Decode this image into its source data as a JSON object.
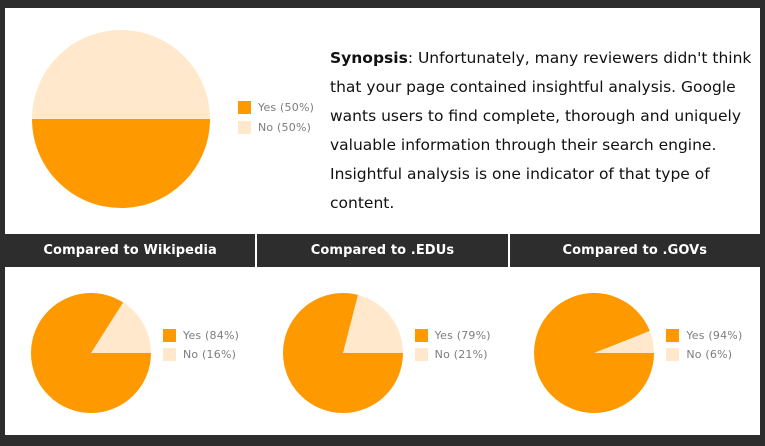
{
  "colors": {
    "yes": "#FF9900",
    "no": "#FFE8CB",
    "frame": "#2D2D2D",
    "header_bg": "#2D2D2D",
    "header_divider": "#FFFFFF",
    "legend_text": "#7D7D7D",
    "synopsis_text": "#111111"
  },
  "synopsis": {
    "label": "Synopsis",
    "text": ": Unfortunately, many reviewers didn't think that your page contained insightful analysis. Google wants users to find complete, thorough and uniquely valuable information through their search engine. Insightful analysis is one indicator of that type of content."
  },
  "chart_data": [
    {
      "type": "pie",
      "title": "",
      "labels": [
        "Yes",
        "No"
      ],
      "values": [
        50,
        50
      ],
      "legend": [
        "Yes (50%)",
        "No (50%)"
      ],
      "legend_position": "right",
      "start_angle": "3-oclock-clockwise"
    },
    {
      "type": "pie",
      "title": "Compared to Wikipedia",
      "labels": [
        "Yes",
        "No"
      ],
      "values": [
        84,
        16
      ],
      "legend": [
        "Yes (84%)",
        "No (16%)"
      ],
      "legend_position": "right",
      "start_angle": "3-oclock-clockwise"
    },
    {
      "type": "pie",
      "title": "Compared to .EDUs",
      "labels": [
        "Yes",
        "No"
      ],
      "values": [
        79,
        21
      ],
      "legend": [
        "Yes (79%)",
        "No (21%)"
      ],
      "legend_position": "right",
      "start_angle": "3-oclock-clockwise"
    },
    {
      "type": "pie",
      "title": "Compared to .GOVs",
      "labels": [
        "Yes",
        "No"
      ],
      "values": [
        94,
        6
      ],
      "legend": [
        "Yes (94%)",
        "No (6%)"
      ],
      "legend_position": "right",
      "start_angle": "3-oclock-clockwise"
    }
  ]
}
